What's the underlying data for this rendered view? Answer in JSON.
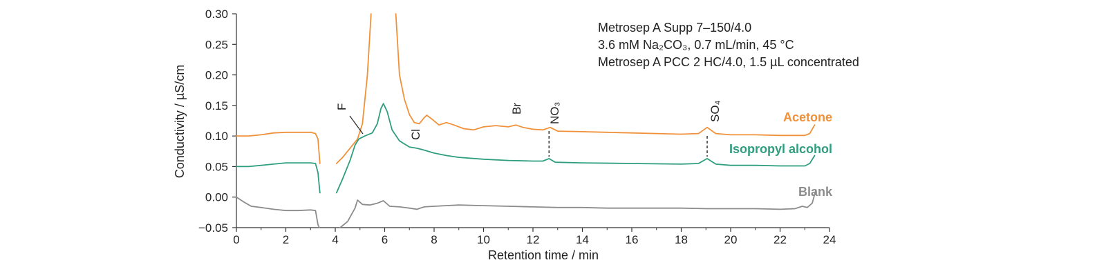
{
  "chart_data": {
    "type": "line",
    "xlabel": "Retention  time / min",
    "ylabel": "Conductivity / µS/cm",
    "xlim": [
      0,
      24
    ],
    "ylim": [
      -0.05,
      0.3
    ],
    "x_ticks": [
      "0",
      "2",
      "4",
      "6",
      "8",
      "10",
      "12",
      "14",
      "16",
      "18",
      "20",
      "22",
      "24"
    ],
    "y_ticks": [
      "0.30",
      "0.25",
      "0.20",
      "0.15",
      "0.10",
      "0.05",
      "0.00",
      "−0.05"
    ],
    "grid": false,
    "annotation_lines": [
      "Metrosep A Supp 7–150/4.0",
      "3.6 mM Na₂CO₃, 0.7 mL/min, 45 °C",
      "Metrosep A PCC 2 HC/4.0, 1.5 µL concentrated"
    ],
    "peaks": [
      {
        "label": "F",
        "x": 4.9
      },
      {
        "label": "Cl",
        "x": 7.3
      },
      {
        "label": "Br",
        "x": 11.2
      },
      {
        "label": "NO₃",
        "x": 12.65
      },
      {
        "label": "SO₄",
        "x": 19.05
      }
    ],
    "series": [
      {
        "name": "Acetone",
        "color": "#F0913A",
        "segments": [
          [
            [
              0,
              0.1
            ],
            [
              0.5,
              0.1
            ],
            [
              1,
              0.102
            ],
            [
              1.5,
              0.105
            ],
            [
              2,
              0.106
            ],
            [
              2.5,
              0.106
            ],
            [
              3.0,
              0.106
            ],
            [
              3.2,
              0.104
            ],
            [
              3.3,
              0.095
            ],
            [
              3.38,
              0.055
            ]
          ],
          [
            [
              4.05,
              0.055
            ],
            [
              4.3,
              0.065
            ],
            [
              4.6,
              0.08
            ],
            [
              4.9,
              0.095
            ],
            [
              5.1,
              0.12
            ],
            [
              5.3,
              0.2
            ],
            [
              5.45,
              0.3
            ]
          ],
          [
            [
              6.45,
              0.3
            ],
            [
              6.6,
              0.2
            ],
            [
              6.8,
              0.16
            ],
            [
              7.0,
              0.135
            ],
            [
              7.2,
              0.122
            ],
            [
              7.4,
              0.12
            ],
            [
              7.6,
              0.13
            ],
            [
              7.7,
              0.134
            ],
            [
              7.9,
              0.128
            ],
            [
              8.2,
              0.118
            ],
            [
              8.5,
              0.122
            ],
            [
              8.8,
              0.118
            ],
            [
              9.2,
              0.112
            ],
            [
              9.6,
              0.11
            ],
            [
              10,
              0.115
            ],
            [
              10.5,
              0.117
            ],
            [
              11,
              0.115
            ],
            [
              11.3,
              0.118
            ],
            [
              11.6,
              0.114
            ],
            [
              12,
              0.111
            ],
            [
              12.4,
              0.11
            ],
            [
              12.7,
              0.114
            ],
            [
              13,
              0.108
            ],
            [
              14,
              0.107
            ],
            [
              15,
              0.106
            ],
            [
              16,
              0.105
            ],
            [
              17,
              0.104
            ],
            [
              18,
              0.103
            ],
            [
              18.7,
              0.104
            ],
            [
              19.05,
              0.114
            ],
            [
              19.4,
              0.104
            ],
            [
              20,
              0.102
            ],
            [
              21,
              0.102
            ],
            [
              22,
              0.101
            ],
            [
              23,
              0.101
            ],
            [
              23.2,
              0.104
            ],
            [
              23.4,
              0.118
            ]
          ]
        ]
      },
      {
        "name": "Isopropyl alcohol",
        "color": "#2E9E7E",
        "segments": [
          [
            [
              0,
              0.05
            ],
            [
              0.5,
              0.05
            ],
            [
              1,
              0.052
            ],
            [
              1.5,
              0.054
            ],
            [
              2,
              0.056
            ],
            [
              2.5,
              0.056
            ],
            [
              3.0,
              0.056
            ],
            [
              3.2,
              0.055
            ],
            [
              3.3,
              0.04
            ],
            [
              3.38,
              0.007
            ]
          ],
          [
            [
              4.05,
              0.007
            ],
            [
              4.3,
              0.03
            ],
            [
              4.6,
              0.06
            ],
            [
              4.8,
              0.085
            ],
            [
              4.95,
              0.095
            ],
            [
              5.2,
              0.1
            ],
            [
              5.5,
              0.105
            ],
            [
              5.7,
              0.12
            ],
            [
              5.85,
              0.145
            ],
            [
              5.95,
              0.153
            ],
            [
              6.1,
              0.14
            ],
            [
              6.3,
              0.11
            ],
            [
              6.6,
              0.092
            ],
            [
              7.0,
              0.082
            ],
            [
              7.3,
              0.08
            ],
            [
              7.5,
              0.078
            ],
            [
              8,
              0.072
            ],
            [
              8.5,
              0.068
            ],
            [
              9,
              0.065
            ],
            [
              10,
              0.062
            ],
            [
              11,
              0.06
            ],
            [
              12,
              0.059
            ],
            [
              12.4,
              0.059
            ],
            [
              12.65,
              0.063
            ],
            [
              12.9,
              0.057
            ],
            [
              14,
              0.056
            ],
            [
              16,
              0.055
            ],
            [
              18,
              0.054
            ],
            [
              18.7,
              0.055
            ],
            [
              19.05,
              0.063
            ],
            [
              19.4,
              0.054
            ],
            [
              20,
              0.052
            ],
            [
              21,
              0.052
            ],
            [
              22,
              0.051
            ],
            [
              23,
              0.051
            ],
            [
              23.2,
              0.055
            ],
            [
              23.4,
              0.068
            ]
          ]
        ]
      },
      {
        "name": "Blank",
        "color": "#8C8C8C",
        "segments": [
          [
            [
              0,
              0.0
            ],
            [
              0.3,
              -0.008
            ],
            [
              0.6,
              -0.015
            ],
            [
              1,
              -0.017
            ],
            [
              1.5,
              -0.02
            ],
            [
              2,
              -0.022
            ],
            [
              2.5,
              -0.022
            ],
            [
              3.0,
              -0.021
            ],
            [
              3.2,
              -0.022
            ],
            [
              3.3,
              -0.045
            ],
            [
              3.35,
              -0.05
            ]
          ],
          [
            [
              4.2,
              -0.05
            ],
            [
              4.5,
              -0.04
            ],
            [
              4.8,
              -0.018
            ],
            [
              4.9,
              -0.005
            ],
            [
              5.1,
              -0.012
            ],
            [
              5.4,
              -0.013
            ],
            [
              5.7,
              -0.01
            ],
            [
              5.95,
              -0.006
            ],
            [
              6.2,
              -0.015
            ],
            [
              6.6,
              -0.016
            ],
            [
              7.0,
              -0.018
            ],
            [
              7.3,
              -0.02
            ],
            [
              7.6,
              -0.016
            ],
            [
              8,
              -0.015
            ],
            [
              9,
              -0.013
            ],
            [
              10,
              -0.014
            ],
            [
              11,
              -0.015
            ],
            [
              12,
              -0.016
            ],
            [
              13,
              -0.017
            ],
            [
              14,
              -0.017
            ],
            [
              15,
              -0.018
            ],
            [
              16,
              -0.018
            ],
            [
              17,
              -0.018
            ],
            [
              18,
              -0.018
            ],
            [
              19,
              -0.019
            ],
            [
              20,
              -0.019
            ],
            [
              21,
              -0.019
            ],
            [
              22,
              -0.02
            ],
            [
              22.6,
              -0.019
            ],
            [
              22.9,
              -0.015
            ],
            [
              23.1,
              -0.017
            ],
            [
              23.3,
              -0.01
            ],
            [
              23.45,
              0.012
            ]
          ]
        ]
      }
    ]
  }
}
